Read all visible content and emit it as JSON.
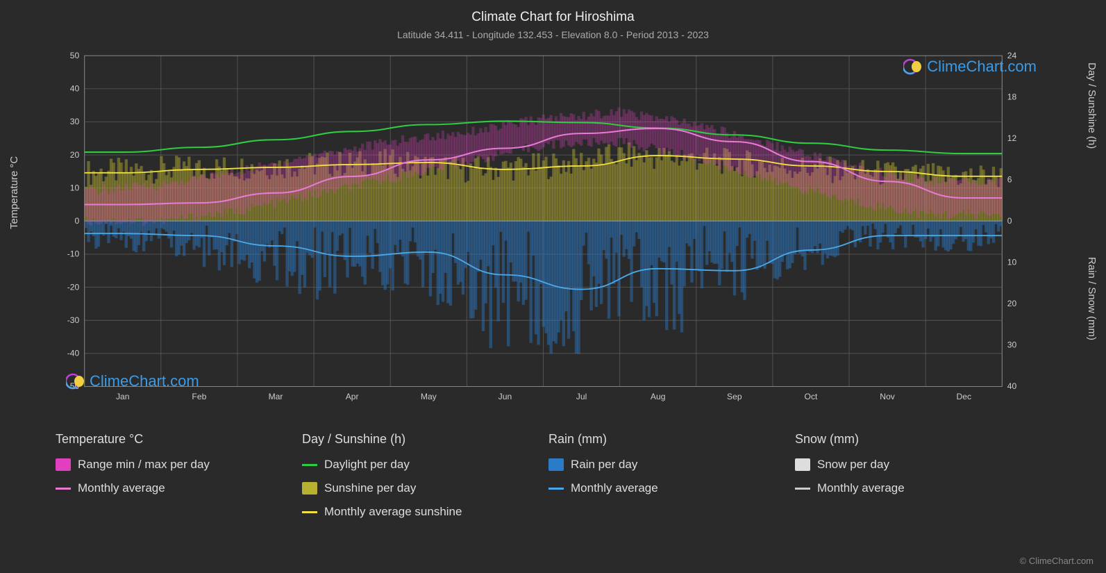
{
  "title": "Climate Chart for Hiroshima",
  "subtitle": "Latitude 34.411 - Longitude 132.453 - Elevation 8.0 - Period 2013 - 2023",
  "watermark_text": "ClimeChart.com",
  "copyright": "© ClimeChart.com",
  "axes": {
    "left_label": "Temperature °C",
    "right_label_top": "Day / Sunshine (h)",
    "right_label_bottom": "Rain / Snow (mm)",
    "left_ticks": [
      50,
      40,
      30,
      20,
      10,
      0,
      -10,
      -20,
      -30,
      -40,
      -50
    ],
    "left_min": -50,
    "left_max": 50,
    "right_top_ticks": [
      24,
      18,
      12,
      6,
      0
    ],
    "right_top_min": 0,
    "right_top_max": 24,
    "right_bottom_ticks": [
      0,
      10,
      20,
      30,
      40
    ],
    "right_bottom_min": 0,
    "right_bottom_max": 40,
    "months": [
      "Jan",
      "Feb",
      "Mar",
      "Apr",
      "May",
      "Jun",
      "Jul",
      "Aug",
      "Sep",
      "Oct",
      "Nov",
      "Dec"
    ]
  },
  "colors": {
    "background": "#2a2a2a",
    "grid": "#555555",
    "border": "#888888",
    "temp_range": "#e040c0",
    "temp_avg": "#e87ad6",
    "daylight": "#2ecc40",
    "sunshine_bars": "#b8b030",
    "sunshine_avg": "#f0e040",
    "rain_bars": "#2a7bc8",
    "rain_avg": "#4aa8e8",
    "snow_bars": "#dddddd",
    "snow_avg": "#cccccc",
    "text": "#cccccc",
    "watermark": "#3a9be8"
  },
  "series": {
    "daylight_hours": [
      10.0,
      10.7,
      11.8,
      13.0,
      14.0,
      14.5,
      14.3,
      13.5,
      12.5,
      11.3,
      10.3,
      9.8
    ],
    "sunshine_avg_hours": [
      7.0,
      7.5,
      7.8,
      8.2,
      8.5,
      7.5,
      8.0,
      9.5,
      9.0,
      8.0,
      7.2,
      6.5
    ],
    "temp_avg_c": [
      5.0,
      5.5,
      8.5,
      13.5,
      18.5,
      22.0,
      26.5,
      28.0,
      24.0,
      18.0,
      12.0,
      7.0
    ],
    "temp_range_min_c": [
      0,
      0,
      3,
      8,
      13,
      18,
      23,
      24,
      19,
      12,
      6,
      2
    ],
    "temp_range_max_c": [
      9,
      11,
      15,
      20,
      24,
      27,
      31,
      33,
      29,
      23,
      17,
      12
    ],
    "rain_avg_mm": [
      3.0,
      3.5,
      6.0,
      8.5,
      7.5,
      13.0,
      16.5,
      11.5,
      12.0,
      7.0,
      3.5,
      3.5
    ]
  },
  "legend": {
    "temp": {
      "header": "Temperature °C",
      "items": [
        {
          "swatch_type": "box",
          "color": "#e040c0",
          "label": "Range min / max per day"
        },
        {
          "swatch_type": "line",
          "color": "#e87ad6",
          "label": "Monthly average"
        }
      ]
    },
    "day": {
      "header": "Day / Sunshine (h)",
      "items": [
        {
          "swatch_type": "line",
          "color": "#2ecc40",
          "label": "Daylight per day"
        },
        {
          "swatch_type": "box",
          "color": "#b8b030",
          "label": "Sunshine per day"
        },
        {
          "swatch_type": "line",
          "color": "#f0e040",
          "label": "Monthly average sunshine"
        }
      ]
    },
    "rain": {
      "header": "Rain (mm)",
      "items": [
        {
          "swatch_type": "box",
          "color": "#2a7bc8",
          "label": "Rain per day"
        },
        {
          "swatch_type": "line",
          "color": "#4aa8e8",
          "label": "Monthly average"
        }
      ]
    },
    "snow": {
      "header": "Snow (mm)",
      "items": [
        {
          "swatch_type": "box",
          "color": "#dddddd",
          "label": "Snow per day"
        },
        {
          "swatch_type": "line",
          "color": "#cccccc",
          "label": "Monthly average"
        }
      ]
    }
  }
}
